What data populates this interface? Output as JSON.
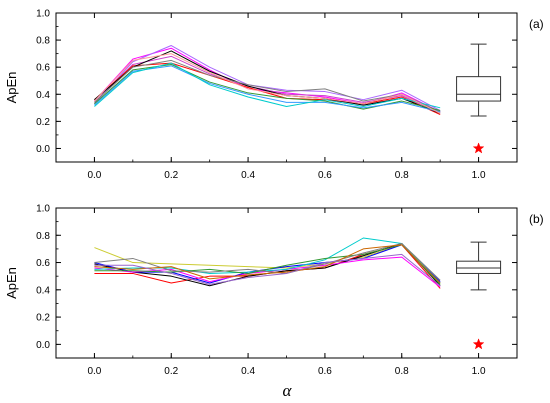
{
  "chart_data": [
    {
      "type": "line",
      "panel_label": "(a)",
      "ylabel": "ApEn",
      "xlabel": "",
      "xlim": [
        -0.1,
        1.1
      ],
      "ylim": [
        -0.1,
        1.0
      ],
      "x_ticks": [
        "0.0",
        "0.2",
        "0.4",
        "0.6",
        "0.8",
        "1.0"
      ],
      "y_ticks": [
        "0.0",
        "0.2",
        "0.4",
        "0.6",
        "0.8",
        "1.0"
      ],
      "x": [
        0.0,
        0.1,
        0.2,
        0.3,
        0.4,
        0.5,
        0.6,
        0.7,
        0.8,
        0.9
      ],
      "series": [
        {
          "color": "#ff00ff",
          "values": [
            0.35,
            0.66,
            0.74,
            0.58,
            0.44,
            0.41,
            0.38,
            0.33,
            0.41,
            0.27
          ]
        },
        {
          "color": "#cc44cc",
          "values": [
            0.34,
            0.62,
            0.68,
            0.55,
            0.46,
            0.4,
            0.39,
            0.34,
            0.39,
            0.26
          ]
        },
        {
          "color": "#aa66ff",
          "values": [
            0.33,
            0.64,
            0.76,
            0.6,
            0.47,
            0.43,
            0.42,
            0.36,
            0.43,
            0.28
          ]
        },
        {
          "color": "#ff0000",
          "values": [
            0.36,
            0.61,
            0.63,
            0.54,
            0.45,
            0.37,
            0.36,
            0.33,
            0.38,
            0.25
          ]
        },
        {
          "color": "#000000",
          "values": [
            0.36,
            0.6,
            0.72,
            0.57,
            0.46,
            0.39,
            0.37,
            0.32,
            0.37,
            0.26
          ]
        },
        {
          "color": "#808080",
          "values": [
            0.34,
            0.6,
            0.65,
            0.54,
            0.47,
            0.42,
            0.44,
            0.35,
            0.4,
            0.27
          ]
        },
        {
          "color": "#339933",
          "values": [
            0.33,
            0.58,
            0.62,
            0.49,
            0.41,
            0.37,
            0.35,
            0.29,
            0.35,
            0.28
          ]
        },
        {
          "color": "#3399ff",
          "values": [
            0.32,
            0.57,
            0.61,
            0.48,
            0.4,
            0.34,
            0.34,
            0.3,
            0.34,
            0.27
          ]
        },
        {
          "color": "#00cccc",
          "values": [
            0.31,
            0.56,
            0.63,
            0.47,
            0.38,
            0.31,
            0.36,
            0.31,
            0.37,
            0.3
          ]
        },
        {
          "color": "#ff9999",
          "values": [
            0.35,
            0.65,
            0.7,
            0.56,
            0.44,
            0.39,
            0.37,
            0.33,
            0.4,
            0.26
          ]
        }
      ],
      "boxplot": {
        "x": 1.0,
        "min": 0.24,
        "q1": 0.35,
        "median": 0.4,
        "q3": 0.53,
        "max": 0.77
      },
      "marker": {
        "x": 1.0,
        "y": 0.0,
        "symbol": "star",
        "color": "#ff0000"
      }
    },
    {
      "type": "line",
      "panel_label": "(b)",
      "ylabel": "ApEn",
      "xlabel": "α",
      "xlim": [
        -0.1,
        1.1
      ],
      "ylim": [
        -0.1,
        1.0
      ],
      "x_ticks": [
        "0.0",
        "0.2",
        "0.4",
        "0.6",
        "0.8",
        "1.0"
      ],
      "y_ticks": [
        "0.0",
        "0.2",
        "0.4",
        "0.6",
        "0.8",
        "1.0"
      ],
      "x": [
        0.0,
        0.1,
        0.2,
        0.3,
        0.4,
        0.5,
        0.6,
        0.7,
        0.8,
        0.9
      ],
      "series": [
        {
          "color": "#cccc33",
          "values": [
            0.71,
            0.6,
            0.59,
            0.58,
            0.57,
            0.56,
            0.59,
            0.64,
            0.73,
            0.44
          ]
        },
        {
          "color": "#ff0000",
          "values": [
            0.52,
            0.52,
            0.45,
            0.5,
            0.5,
            0.54,
            0.56,
            0.66,
            0.73,
            0.41
          ]
        },
        {
          "color": "#000000",
          "values": [
            0.59,
            0.53,
            0.5,
            0.43,
            0.5,
            0.54,
            0.56,
            0.65,
            0.74,
            0.43
          ]
        },
        {
          "color": "#0000ff",
          "values": [
            0.6,
            0.53,
            0.53,
            0.45,
            0.53,
            0.57,
            0.6,
            0.63,
            0.73,
            0.46
          ]
        },
        {
          "color": "#ff00ff",
          "values": [
            0.56,
            0.53,
            0.55,
            0.46,
            0.52,
            0.55,
            0.58,
            0.62,
            0.64,
            0.42
          ]
        },
        {
          "color": "#00cccc",
          "values": [
            0.55,
            0.56,
            0.56,
            0.52,
            0.53,
            0.55,
            0.62,
            0.78,
            0.74,
            0.45
          ]
        },
        {
          "color": "#339933",
          "values": [
            0.54,
            0.54,
            0.53,
            0.55,
            0.52,
            0.58,
            0.63,
            0.66,
            0.73,
            0.44
          ]
        },
        {
          "color": "#808080",
          "values": [
            0.6,
            0.63,
            0.54,
            0.53,
            0.55,
            0.52,
            0.59,
            0.67,
            0.74,
            0.47
          ]
        },
        {
          "color": "#cc6600",
          "values": [
            0.57,
            0.55,
            0.57,
            0.48,
            0.51,
            0.53,
            0.57,
            0.7,
            0.73,
            0.45
          ]
        },
        {
          "color": "#9966cc",
          "values": [
            0.58,
            0.58,
            0.52,
            0.44,
            0.49,
            0.52,
            0.6,
            0.63,
            0.66,
            0.43
          ]
        }
      ],
      "boxplot": {
        "x": 1.0,
        "min": 0.4,
        "q1": 0.52,
        "median": 0.56,
        "q3": 0.61,
        "max": 0.75
      },
      "marker": {
        "x": 1.0,
        "y": 0.0,
        "symbol": "star",
        "color": "#ff0000"
      }
    }
  ]
}
